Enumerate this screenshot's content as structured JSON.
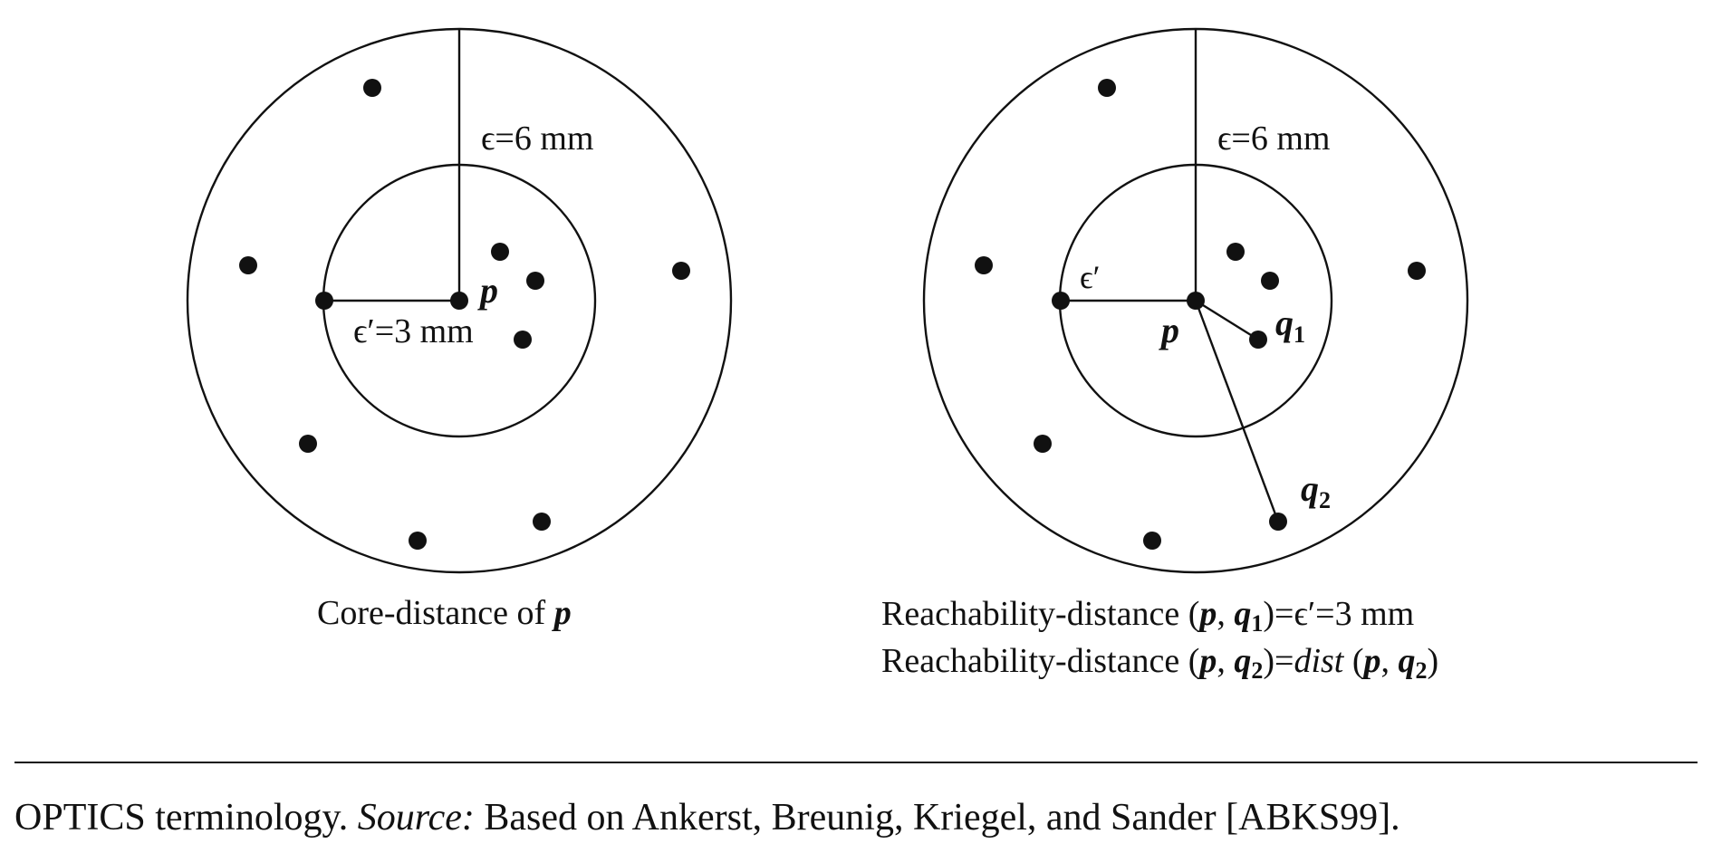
{
  "left_panel": {
    "outer_radius_label": "ϵ=6 mm",
    "inner_radius_label": "ϵ′=3 mm",
    "center_label": "p",
    "caption_prefix": "Core-distance of ",
    "caption_var": "p"
  },
  "right_panel": {
    "outer_radius_label": "ϵ=6 mm",
    "inner_radius_label": "ϵ′",
    "center_label": "p",
    "q1_label": "q",
    "q1_sub": "1",
    "q2_label": "q",
    "q2_sub": "2",
    "line1": {
      "prefix": "Reachability-distance (",
      "p": "p",
      "comma": ", ",
      "q": "q",
      "q_sub": "1",
      "close_eq": ")=",
      "result": "ϵ′=3 mm"
    },
    "line2": {
      "prefix": "Reachability-distance (",
      "p": "p",
      "comma": ", ",
      "q": "q",
      "q_sub": "2",
      "close_eq": ")=",
      "dist": "dist",
      "open": " (",
      "p2": "p",
      "comma2": ", ",
      "q2": "q",
      "q2_sub": "2",
      "close": ")"
    }
  },
  "caption": {
    "title": "OPTICS terminology.",
    "source_label": "Source:",
    "source_text": "Based on Ankerst, Breunig, Kriegel, and Sander [ABKS99]."
  }
}
